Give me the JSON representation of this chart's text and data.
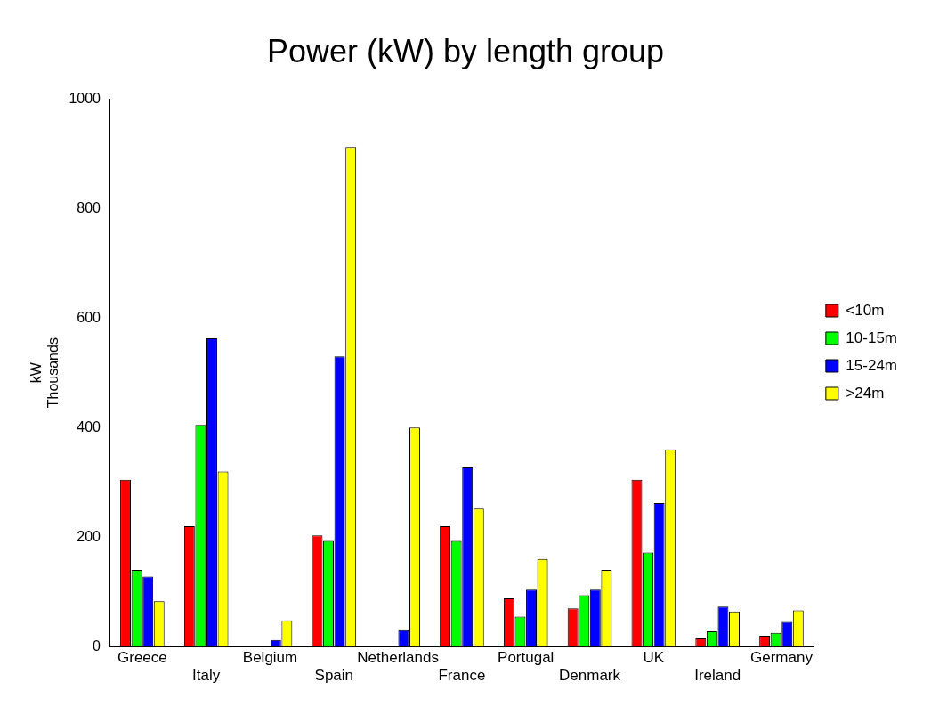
{
  "chart_data": {
    "type": "bar",
    "title": "Power (kW) by length group",
    "ylabel": "kW\nThousands",
    "categories": [
      "Greece",
      "Italy",
      "Belgium",
      "Spain",
      "Netherlands",
      "France",
      "Portugal",
      "Denmark",
      "UK",
      "Ireland",
      "Germany"
    ],
    "series": [
      {
        "name": "<10m",
        "color": "#ff0000",
        "values": [
          305,
          220,
          0,
          203,
          0,
          220,
          88,
          70,
          305,
          15,
          20
        ]
      },
      {
        "name": "10-15m",
        "color": "#00ff00",
        "values": [
          140,
          405,
          0,
          193,
          0,
          193,
          55,
          94,
          172,
          28,
          25
        ]
      },
      {
        "name": "15-24m",
        "color": "#0000ff",
        "values": [
          128,
          563,
          12,
          530,
          30,
          327,
          104,
          104,
          262,
          73,
          45
        ]
      },
      {
        "name": ">24m",
        "color": "#ffff00",
        "values": [
          83,
          320,
          48,
          912,
          400,
          252,
          160,
          140,
          360,
          64,
          66
        ]
      }
    ],
    "ylim": [
      0,
      1000
    ],
    "yticks": [
      0,
      200,
      400,
      600,
      800,
      1000
    ],
    "grid": false,
    "legend": "right"
  }
}
